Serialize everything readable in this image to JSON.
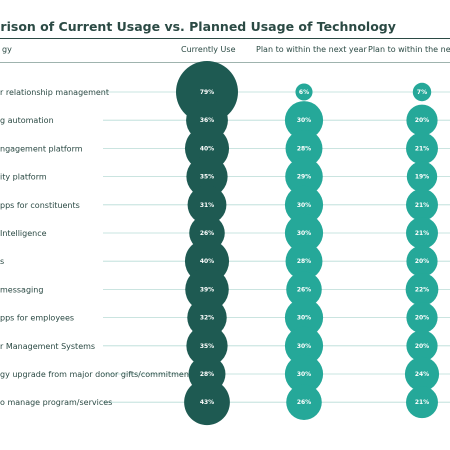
{
  "chart_data": {
    "type": "bubble",
    "title": "arison of Current Usage vs. Planned Usage of Technology",
    "row_header": "gy",
    "columns": [
      "Currently Use",
      "Plan to within the next year",
      "Plan to within the next"
    ],
    "categories": [
      "r relationship management",
      "g automation",
      "ngagement platform",
      "ity platform",
      "pps for constituents",
      " Intelligence",
      "s",
      "messaging",
      "pps for employees",
      "r Management Systems",
      "gy upgrade from major donor gifts/commitments",
      "o manage program/services"
    ],
    "series": [
      {
        "name": "Currently Use",
        "values": [
          79,
          36,
          40,
          35,
          31,
          26,
          40,
          39,
          32,
          35,
          28,
          43
        ]
      },
      {
        "name": "Plan to within the next year",
        "values": [
          6,
          30,
          28,
          29,
          30,
          30,
          28,
          26,
          30,
          30,
          30,
          26
        ]
      },
      {
        "name": "Plan to within the next",
        "values": [
          7,
          20,
          21,
          19,
          21,
          21,
          20,
          22,
          20,
          20,
          24,
          21
        ]
      }
    ],
    "value_suffix": "%",
    "colors": [
      "#1e5a52",
      "#25a899",
      "#25a899"
    ],
    "row_line_color": "#b8dcd6"
  }
}
